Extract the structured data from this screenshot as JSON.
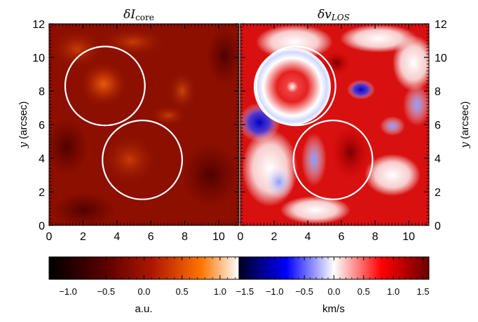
{
  "chart_data": [
    {
      "type": "heatmap",
      "title_main": "δI",
      "title_sub": "core",
      "xlabel": "",
      "ylabel_var": "y",
      "ylabel_unit": "(arcsec)",
      "xlim": [
        0,
        11.2
      ],
      "ylim": [
        0,
        12
      ],
      "xticks": [
        0,
        2,
        4,
        6,
        8,
        10
      ],
      "yticks": [
        0,
        2,
        4,
        6,
        8,
        10,
        12
      ],
      "circles": [
        {
          "cx": 3.3,
          "cy": 8.3,
          "r": 2.35
        },
        {
          "cx": 5.5,
          "cy": 3.9,
          "r": 2.35
        }
      ],
      "colorbar": {
        "colormap": "hot",
        "label": "a.u.",
        "range": [
          -1.25,
          1.25
        ],
        "ticks": [
          "−1.0",
          "−0.5",
          "0.0",
          "0.5",
          "1.0"
        ],
        "tick_values": [
          -1.0,
          -0.5,
          0.0,
          0.5,
          1.0
        ],
        "stops": [
          "#000000",
          "#6b0000",
          "#b81a00",
          "#ff7a00",
          "#ffffff"
        ]
      }
    },
    {
      "type": "heatmap",
      "title_main": "δv",
      "title_sub": "LOS",
      "xlabel": "",
      "ylabel_var": "y",
      "ylabel_unit": "(arcsec)",
      "xlim": [
        0,
        11.2
      ],
      "ylim": [
        0,
        12
      ],
      "xticks": [
        0,
        2,
        4,
        6,
        8,
        10
      ],
      "yticks": [
        0,
        2,
        4,
        6,
        8,
        10,
        12
      ],
      "circles": [
        {
          "cx": 3.3,
          "cy": 8.3,
          "r": 2.35
        },
        {
          "cx": 5.5,
          "cy": 3.9,
          "r": 2.35
        }
      ],
      "colorbar": {
        "colormap": "seismic",
        "label": "km/s",
        "range": [
          -1.6,
          1.6
        ],
        "ticks": [
          "−1.5",
          "−1.0",
          "−0.5",
          "0.0",
          "0.5",
          "1.0",
          "1.5"
        ],
        "tick_values": [
          -1.5,
          -1.0,
          -0.5,
          0.0,
          0.5,
          1.0,
          1.5
        ],
        "stops": [
          "#000033",
          "#0000ff",
          "#ffffff",
          "#ff0000",
          "#6a0000"
        ]
      }
    }
  ]
}
